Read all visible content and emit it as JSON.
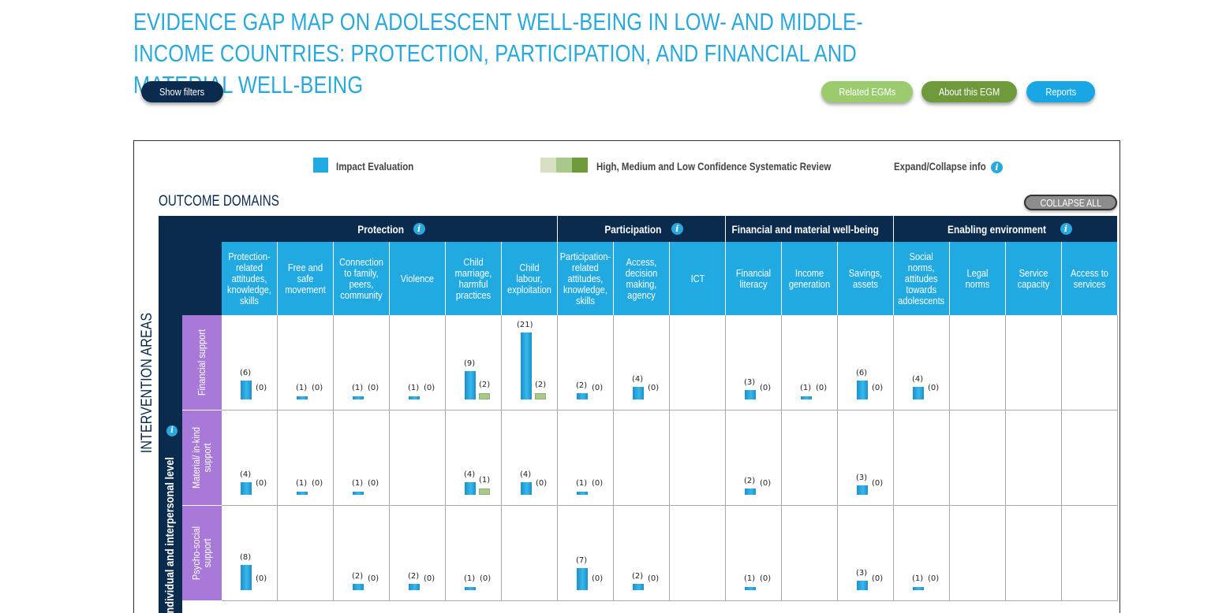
{
  "title": "EVIDENCE GAP MAP ON ADOLESCENT WELL-BEING IN LOW- AND MIDDLE-INCOME COUNTRIES: PROTECTION, PARTICIPATION, AND FINANCIAL AND MATERIAL WELL-BEING",
  "buttons": {
    "show_filters": "Show filters",
    "related": "Related EGMs",
    "about": "About this EGM",
    "reports": "Reports"
  },
  "legend": {
    "impact": "Impact Evaluation",
    "review": "High, Medium and Low Confidence Systematic Review",
    "expand": "Expand/Collapse info"
  },
  "outcome_domains": "OUTCOME DOMAINS",
  "collapse_all": "COLLAPSE ALL",
  "intervention_areas": "INTERVENTION AREAS",
  "level_label": "Individual and interpersonal level",
  "colors": {
    "title": "#29a8dd",
    "navy": "#0a2a4e",
    "cyan": "#21aae1",
    "purple": "#a879d8",
    "btn_related": "#9ccb6d",
    "btn_about": "#6f9a3b",
    "btn_reports": "#18a6e4",
    "sr_high": "#d8e0c4",
    "sr_medium": "#a9c98a",
    "sr_low": "#6f9a3b"
  },
  "groups": [
    {
      "label": "Protection",
      "span": 6
    },
    {
      "label": "Participation",
      "span": 3
    },
    {
      "label": "Financial and material well-being",
      "span": 3
    },
    {
      "label": "Enabling environment",
      "span": 4
    }
  ],
  "columns": [
    "Protection-related attitudes, knowledge, skills",
    "Free and safe movement",
    "Connection to family, peers, community",
    "Violence",
    "Child marriage, harmful practices",
    "Child labour, exploitation",
    "Participation-related attitudes, knowledge, skills",
    "Access, decision making, agency",
    "ICT",
    "Financial literacy",
    "Income generation",
    "Savings, assets",
    "Social norms, attitudes towards adolescents",
    "Legal norms",
    "Service capacity",
    "Access to services"
  ],
  "rows": [
    {
      "label": "Financial support",
      "cells": [
        {
          "ie": 6,
          "sr": 0
        },
        {
          "ie": 1,
          "sr": 0
        },
        {
          "ie": 1,
          "sr": 0
        },
        {
          "ie": 1,
          "sr": 0
        },
        {
          "ie": 9,
          "sr": 2
        },
        {
          "ie": 21,
          "sr": 2
        },
        {
          "ie": 2,
          "sr": 0
        },
        {
          "ie": 4,
          "sr": 0
        },
        null,
        {
          "ie": 3,
          "sr": 0
        },
        {
          "ie": 1,
          "sr": 0
        },
        {
          "ie": 6,
          "sr": 0
        },
        {
          "ie": 4,
          "sr": 0
        },
        null,
        null,
        null
      ]
    },
    {
      "label": "Material/ in-kind support",
      "cells": [
        {
          "ie": 4,
          "sr": 0
        },
        {
          "ie": 1,
          "sr": 0
        },
        {
          "ie": 1,
          "sr": 0
        },
        null,
        {
          "ie": 4,
          "sr": 1
        },
        {
          "ie": 4,
          "sr": 0
        },
        {
          "ie": 1,
          "sr": 0
        },
        null,
        null,
        {
          "ie": 2,
          "sr": 0
        },
        null,
        {
          "ie": 3,
          "sr": 0
        },
        null,
        null,
        null,
        null
      ]
    },
    {
      "label": "Psycho-social support",
      "cells": [
        {
          "ie": 8,
          "sr": 0
        },
        null,
        {
          "ie": 2,
          "sr": 0
        },
        {
          "ie": 2,
          "sr": 0
        },
        {
          "ie": 1,
          "sr": 0
        },
        null,
        {
          "ie": 7,
          "sr": 0
        },
        {
          "ie": 2,
          "sr": 0
        },
        null,
        {
          "ie": 1,
          "sr": 0
        },
        null,
        {
          "ie": 3,
          "sr": 0
        },
        {
          "ie": 1,
          "sr": 0
        },
        null,
        null,
        null
      ]
    }
  ]
}
